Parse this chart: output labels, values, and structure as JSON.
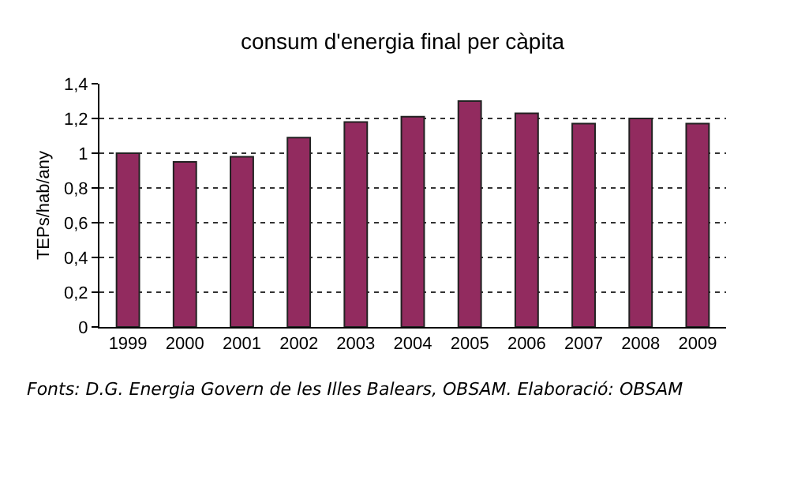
{
  "chart_data": {
    "type": "bar",
    "title": "consum d'energia final per càpita",
    "ylabel": "TEPs/hab/any",
    "categories": [
      "1999",
      "2000",
      "2001",
      "2002",
      "2003",
      "2004",
      "2005",
      "2006",
      "2007",
      "2008",
      "2009"
    ],
    "values": [
      1.0,
      0.95,
      0.98,
      1.09,
      1.18,
      1.21,
      1.3,
      1.23,
      1.17,
      1.2,
      1.17
    ],
    "color": "#922b5f",
    "ylim": [
      0,
      1.4
    ],
    "yticks": [
      0,
      {
        "value": 0.2,
        "label": "0,2"
      },
      {
        "value": 0.4,
        "label": "0,4"
      },
      {
        "value": 0.6,
        "label": "0,6"
      },
      {
        "value": 0.8,
        "label": "0,8"
      },
      1,
      {
        "value": 1.2,
        "label": "1,2"
      },
      {
        "value": 1.4,
        "label": "1,4"
      }
    ],
    "grid": "y",
    "annotations": [
      "Fonts: D.G. Energia Govern de les Illes Balears, OBSAM. Elaboració: OBSAM"
    ]
  }
}
